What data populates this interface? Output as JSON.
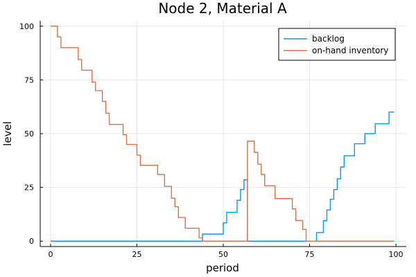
{
  "chart_data": {
    "type": "line",
    "step": true,
    "title": "Node 2, Material A",
    "xlabel": "period",
    "ylabel": "level",
    "xlim": [
      -3,
      103
    ],
    "ylim": [
      -2.5,
      102.5
    ],
    "xticks": [
      0,
      25,
      50,
      75,
      100
    ],
    "yticks": [
      0,
      25,
      50,
      75,
      100
    ],
    "grid": true,
    "legend_position": "top-right",
    "series": [
      {
        "name": "backlog",
        "color": "#009AF9",
        "points": [
          [
            0,
            0
          ],
          [
            44,
            0
          ],
          [
            44,
            3.3
          ],
          [
            50,
            3.3
          ],
          [
            50,
            8.5
          ],
          [
            51,
            8.5
          ],
          [
            51,
            13.4
          ],
          [
            54,
            13.4
          ],
          [
            54,
            19
          ],
          [
            55,
            19
          ],
          [
            55,
            24
          ],
          [
            56,
            24
          ],
          [
            56,
            28.5
          ],
          [
            57,
            28.5
          ],
          [
            57,
            0
          ],
          [
            74,
            0
          ],
          [
            74,
            0
          ],
          [
            77,
            0
          ],
          [
            77,
            4
          ],
          [
            79,
            4
          ],
          [
            79,
            9.5
          ],
          [
            80,
            9.5
          ],
          [
            80,
            14.5
          ],
          [
            81,
            14.5
          ],
          [
            81,
            19.5
          ],
          [
            82,
            19.5
          ],
          [
            82,
            24
          ],
          [
            83,
            24
          ],
          [
            83,
            29
          ],
          [
            84,
            29
          ],
          [
            84,
            34.5
          ],
          [
            85,
            34.5
          ],
          [
            85,
            39.7
          ],
          [
            88,
            39.7
          ],
          [
            88,
            45.3
          ],
          [
            91,
            45.3
          ],
          [
            91,
            50
          ],
          [
            94,
            50
          ],
          [
            94,
            54.6
          ],
          [
            98,
            54.6
          ],
          [
            98,
            60
          ],
          [
            99.5,
            60
          ]
        ]
      },
      {
        "name": "on-hand inventory",
        "color": "#E26F46",
        "points": [
          [
            0,
            100
          ],
          [
            2,
            100
          ],
          [
            2,
            95
          ],
          [
            3,
            95
          ],
          [
            3,
            90
          ],
          [
            8,
            90
          ],
          [
            8,
            84.5
          ],
          [
            9,
            84.5
          ],
          [
            9,
            79.5
          ],
          [
            12,
            79.5
          ],
          [
            12,
            74
          ],
          [
            13,
            74
          ],
          [
            13,
            70
          ],
          [
            15,
            70
          ],
          [
            15,
            65
          ],
          [
            16,
            65
          ],
          [
            16,
            59.5
          ],
          [
            17,
            59.5
          ],
          [
            17,
            54.3
          ],
          [
            21,
            54.3
          ],
          [
            21,
            49.5
          ],
          [
            22,
            49.5
          ],
          [
            22,
            45
          ],
          [
            25,
            45
          ],
          [
            25,
            40
          ],
          [
            26,
            40
          ],
          [
            26,
            35.3
          ],
          [
            31,
            35.3
          ],
          [
            31,
            31
          ],
          [
            33,
            31
          ],
          [
            33,
            25.5
          ],
          [
            35,
            25.5
          ],
          [
            35,
            20
          ],
          [
            36,
            20
          ],
          [
            36,
            16
          ],
          [
            37,
            16
          ],
          [
            37,
            11
          ],
          [
            39,
            11
          ],
          [
            39,
            6
          ],
          [
            43,
            6
          ],
          [
            43,
            1.5
          ],
          [
            44,
            1.5
          ],
          [
            44,
            0
          ],
          [
            57,
            0
          ],
          [
            57,
            46.5
          ],
          [
            59,
            46.5
          ],
          [
            59,
            41.3
          ],
          [
            60,
            41.3
          ],
          [
            60,
            35.8
          ],
          [
            61,
            35.8
          ],
          [
            61,
            31
          ],
          [
            62,
            31
          ],
          [
            62,
            25.8
          ],
          [
            65,
            25.8
          ],
          [
            65,
            19.8
          ],
          [
            70,
            19.8
          ],
          [
            70,
            15
          ],
          [
            71,
            15
          ],
          [
            71,
            9.6
          ],
          [
            73,
            9.6
          ],
          [
            73,
            5.5
          ],
          [
            74,
            5.5
          ],
          [
            74,
            0
          ],
          [
            99.5,
            0
          ]
        ]
      }
    ]
  }
}
